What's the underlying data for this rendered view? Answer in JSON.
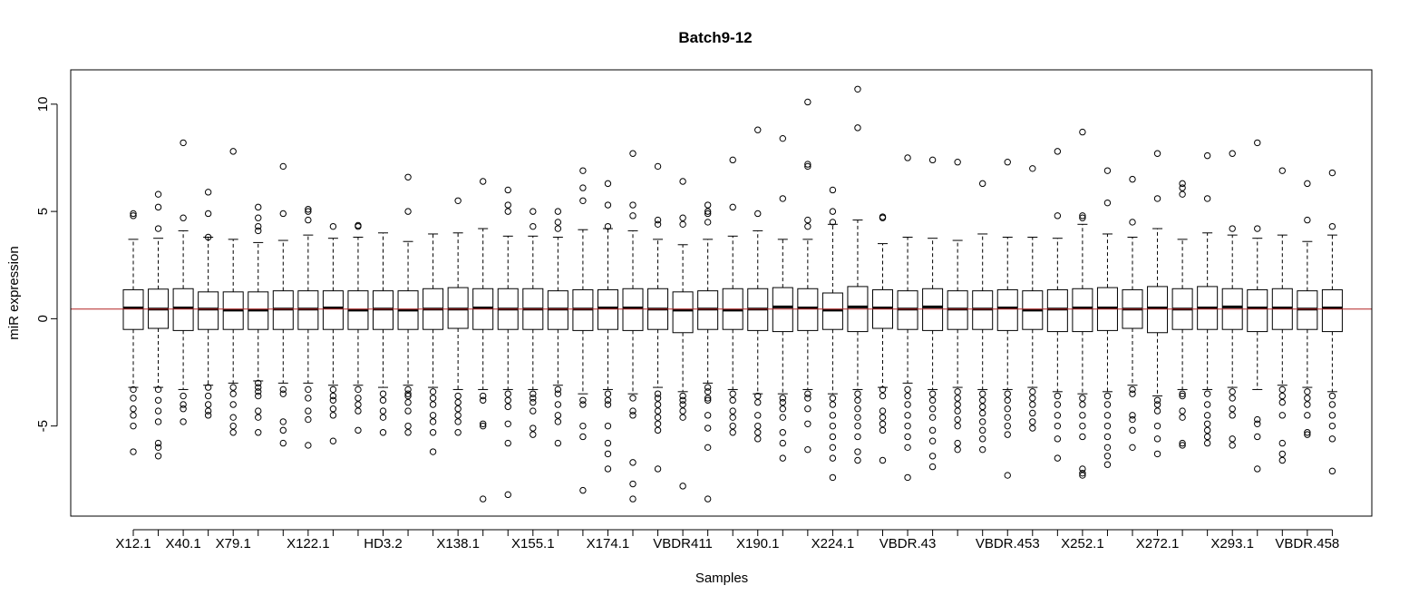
{
  "chart_data": {
    "type": "box",
    "title": "Batch9-12",
    "xlabel": "Samples",
    "ylabel": "miR expression",
    "ylim": [
      -9.2,
      11.6
    ],
    "yticks": [
      -5,
      0,
      5,
      10
    ],
    "reference_line": {
      "y": 0.45,
      "color": "#b22222"
    },
    "grid": false,
    "legend": "none",
    "shown_x_labels": [
      {
        "index": 1,
        "label": "X12.1"
      },
      {
        "index": 3,
        "label": "X40.1"
      },
      {
        "index": 5,
        "label": "X79.1"
      },
      {
        "index": 8,
        "label": "X122.1"
      },
      {
        "index": 11,
        "label": "HD3.2"
      },
      {
        "index": 14,
        "label": "X138.1"
      },
      {
        "index": 17,
        "label": "X155.1"
      },
      {
        "index": 20,
        "label": "X174.1"
      },
      {
        "index": 23,
        "label": "VBDR411"
      },
      {
        "index": 26,
        "label": "X190.1"
      },
      {
        "index": 29,
        "label": "X224.1"
      },
      {
        "index": 32,
        "label": "VBDR.43"
      },
      {
        "index": 36,
        "label": "VBDR.453"
      },
      {
        "index": 39,
        "label": "X252.1"
      },
      {
        "index": 42,
        "label": "X272.1"
      },
      {
        "index": 45,
        "label": "X293.1"
      },
      {
        "index": 48,
        "label": "VBDR.458"
      }
    ],
    "boxes": [
      {
        "q1": -0.5,
        "median": 0.5,
        "q3": 1.35,
        "lo": -3.2,
        "hi": 3.7,
        "out": [
          4.8,
          4.9,
          -3.3,
          -3.7,
          -4.2,
          -4.5,
          -5.0,
          -6.2
        ]
      },
      {
        "q1": -0.45,
        "median": 0.45,
        "q3": 1.38,
        "lo": -3.2,
        "hi": 3.75,
        "out": [
          4.2,
          5.2,
          5.8,
          -3.3,
          -3.8,
          -4.3,
          -4.8,
          -5.8,
          -6.0,
          -6.4
        ]
      },
      {
        "q1": -0.55,
        "median": 0.5,
        "q3": 1.4,
        "lo": -3.3,
        "hi": 4.1,
        "out": [
          4.7,
          8.2,
          -3.6,
          -4.0,
          -4.2,
          -4.8
        ]
      },
      {
        "q1": -0.5,
        "median": 0.45,
        "q3": 1.25,
        "lo": -3.1,
        "hi": 3.8,
        "out": [
          3.8,
          4.9,
          5.9,
          -3.2,
          -3.6,
          -4.0,
          -4.3,
          -4.5
        ]
      },
      {
        "q1": -0.5,
        "median": 0.4,
        "q3": 1.25,
        "lo": -3.0,
        "hi": 3.7,
        "out": [
          7.8,
          -3.2,
          -3.5,
          -4.0,
          -4.6,
          -5.0,
          -5.3
        ]
      },
      {
        "q1": -0.5,
        "median": 0.4,
        "q3": 1.25,
        "lo": -2.9,
        "hi": 3.55,
        "out": [
          4.1,
          4.3,
          4.7,
          5.2,
          -3.0,
          -3.2,
          -3.4,
          -3.6,
          -4.3,
          -4.6,
          -5.3
        ]
      },
      {
        "q1": -0.5,
        "median": 0.45,
        "q3": 1.3,
        "lo": -3.0,
        "hi": 3.65,
        "out": [
          4.9,
          7.1,
          -3.3,
          -3.5,
          -4.8,
          -5.2,
          -5.8
        ]
      },
      {
        "q1": -0.5,
        "median": 0.45,
        "q3": 1.3,
        "lo": -3.0,
        "hi": 3.9,
        "out": [
          4.6,
          5.0,
          5.1,
          -3.3,
          -3.7,
          -4.3,
          -4.7,
          -5.9
        ]
      },
      {
        "q1": -0.5,
        "median": 0.5,
        "q3": 1.3,
        "lo": -3.1,
        "hi": 3.75,
        "out": [
          4.3,
          -3.3,
          -3.6,
          -3.8,
          -4.2,
          -4.5,
          -5.7
        ]
      },
      {
        "q1": -0.5,
        "median": 0.4,
        "q3": 1.3,
        "lo": -3.1,
        "hi": 3.8,
        "out": [
          4.3,
          4.35,
          -3.3,
          -3.7,
          -4.0,
          -4.3,
          -5.2
        ]
      },
      {
        "q1": -0.5,
        "median": 0.45,
        "q3": 1.3,
        "lo": -3.2,
        "hi": 4.0,
        "out": [
          -3.5,
          -3.8,
          -4.3,
          -4.6,
          -5.3
        ]
      },
      {
        "q1": -0.5,
        "median": 0.4,
        "q3": 1.3,
        "lo": -3.1,
        "hi": 3.6,
        "out": [
          5.0,
          6.6,
          -3.3,
          -3.5,
          -3.6,
          -3.9,
          -4.3,
          -5.0,
          -5.3
        ]
      },
      {
        "q1": -0.5,
        "median": 0.45,
        "q3": 1.4,
        "lo": -3.2,
        "hi": 3.95,
        "out": [
          -3.4,
          -3.7,
          -4.0,
          -4.5,
          -4.8,
          -5.3,
          -6.2
        ]
      },
      {
        "q1": -0.45,
        "median": 0.45,
        "q3": 1.45,
        "lo": -3.3,
        "hi": 4.0,
        "out": [
          5.5,
          -3.6,
          -3.9,
          -4.2,
          -4.5,
          -4.8,
          -5.3
        ]
      },
      {
        "q1": -0.5,
        "median": 0.5,
        "q3": 1.4,
        "lo": -3.3,
        "hi": 4.2,
        "out": [
          6.4,
          -3.6,
          -3.8,
          -4.9,
          -5.0,
          -8.4
        ]
      },
      {
        "q1": -0.5,
        "median": 0.45,
        "q3": 1.4,
        "lo": -3.3,
        "hi": 3.85,
        "out": [
          5.0,
          5.3,
          6.0,
          -3.5,
          -3.8,
          -4.1,
          -4.9,
          -5.8,
          -8.2
        ]
      },
      {
        "q1": -0.5,
        "median": 0.45,
        "q3": 1.4,
        "lo": -3.3,
        "hi": 3.85,
        "out": [
          4.3,
          5.0,
          -3.5,
          -3.7,
          -3.9,
          -4.3,
          -5.1,
          -5.4
        ]
      },
      {
        "q1": -0.5,
        "median": 0.45,
        "q3": 1.3,
        "lo": -3.1,
        "hi": 3.8,
        "out": [
          4.2,
          4.5,
          5.0,
          -3.3,
          -3.5,
          -4.0,
          -4.5,
          -4.8,
          -5.8
        ]
      },
      {
        "q1": -0.55,
        "median": 0.45,
        "q3": 1.35,
        "lo": -3.5,
        "hi": 4.15,
        "out": [
          5.5,
          6.1,
          6.9,
          -3.8,
          -4.0,
          -5.0,
          -5.5,
          -8.0
        ]
      },
      {
        "q1": -0.5,
        "median": 0.5,
        "q3": 1.35,
        "lo": -3.3,
        "hi": 4.2,
        "out": [
          4.3,
          5.3,
          6.3,
          -3.5,
          -3.8,
          -4.0,
          -5.0,
          -5.8,
          -6.3,
          -7.0
        ]
      },
      {
        "q1": -0.55,
        "median": 0.5,
        "q3": 1.4,
        "lo": -3.5,
        "hi": 4.1,
        "out": [
          4.8,
          5.3,
          7.7,
          -3.7,
          -4.3,
          -4.5,
          -6.7,
          -7.7,
          -8.4
        ]
      },
      {
        "q1": -0.5,
        "median": 0.45,
        "q3": 1.4,
        "lo": -3.2,
        "hi": 3.7,
        "out": [
          4.4,
          4.6,
          7.1,
          -3.5,
          -3.7,
          -4.0,
          -4.3,
          -4.6,
          -4.9,
          -5.2,
          -7.0
        ]
      },
      {
        "q1": -0.65,
        "median": 0.4,
        "q3": 1.25,
        "lo": -3.4,
        "hi": 3.45,
        "out": [
          4.4,
          4.7,
          6.4,
          -3.6,
          -3.8,
          -4.0,
          -4.3,
          -4.6,
          -7.8
        ]
      },
      {
        "q1": -0.5,
        "median": 0.45,
        "q3": 1.3,
        "lo": -3.0,
        "hi": 3.7,
        "out": [
          4.5,
          4.9,
          5.0,
          5.3,
          -3.2,
          -3.4,
          -3.7,
          -3.8,
          -4.5,
          -5.1,
          -6.0,
          -8.4
        ]
      },
      {
        "q1": -0.5,
        "median": 0.4,
        "q3": 1.4,
        "lo": -3.3,
        "hi": 3.85,
        "out": [
          5.2,
          7.4,
          -3.5,
          -3.8,
          -4.3,
          -4.6,
          -5.0,
          -5.3
        ]
      },
      {
        "q1": -0.55,
        "median": 0.45,
        "q3": 1.4,
        "lo": -3.5,
        "hi": 4.1,
        "out": [
          4.9,
          8.8,
          -3.6,
          -3.9,
          -4.5,
          -5.0,
          -5.3,
          -5.6
        ]
      },
      {
        "q1": -0.6,
        "median": 0.55,
        "q3": 1.45,
        "lo": -3.5,
        "hi": 3.7,
        "out": [
          5.6,
          8.4,
          -3.7,
          -3.9,
          -4.2,
          -4.6,
          -5.3,
          -5.8,
          -6.5
        ]
      },
      {
        "q1": -0.55,
        "median": 0.5,
        "q3": 1.4,
        "lo": -3.3,
        "hi": 3.7,
        "out": [
          4.3,
          4.6,
          7.1,
          7.2,
          10.1,
          -3.5,
          -3.7,
          -4.2,
          -4.9,
          -6.1
        ]
      },
      {
        "q1": -0.5,
        "median": 0.4,
        "q3": 1.2,
        "lo": -3.5,
        "hi": 4.4,
        "out": [
          4.5,
          5.0,
          6.0,
          -3.7,
          -4.0,
          -4.5,
          -5.0,
          -5.5,
          -6.0,
          -6.5,
          -7.4
        ]
      },
      {
        "q1": -0.6,
        "median": 0.55,
        "q3": 1.5,
        "lo": -3.3,
        "hi": 4.6,
        "out": [
          10.7,
          8.9,
          -3.5,
          -3.8,
          -4.2,
          -4.6,
          -5.0,
          -5.5,
          -6.2,
          -6.6
        ]
      },
      {
        "q1": -0.45,
        "median": 0.5,
        "q3": 1.35,
        "lo": -3.2,
        "hi": 3.5,
        "out": [
          4.7,
          4.75,
          -3.3,
          -3.6,
          -4.3,
          -4.6,
          -4.9,
          -5.2,
          -6.6
        ]
      },
      {
        "q1": -0.5,
        "median": 0.45,
        "q3": 1.3,
        "lo": -3.0,
        "hi": 3.8,
        "out": [
          7.5,
          -3.3,
          -3.6,
          -4.0,
          -4.5,
          -5.0,
          -5.5,
          -6.0,
          -7.4
        ]
      },
      {
        "q1": -0.55,
        "median": 0.55,
        "q3": 1.4,
        "lo": -3.3,
        "hi": 3.75,
        "out": [
          7.4,
          -3.5,
          -3.8,
          -4.2,
          -4.6,
          -5.2,
          -5.7,
          -6.4,
          -6.9
        ]
      },
      {
        "q1": -0.5,
        "median": 0.45,
        "q3": 1.3,
        "lo": -3.2,
        "hi": 3.65,
        "out": [
          7.3,
          -3.4,
          -3.7,
          -4.0,
          -4.3,
          -4.7,
          -5.0,
          -5.8,
          -6.1
        ]
      },
      {
        "q1": -0.5,
        "median": 0.45,
        "q3": 1.3,
        "lo": -3.3,
        "hi": 3.95,
        "out": [
          6.3,
          -3.5,
          -3.8,
          -4.1,
          -4.4,
          -4.8,
          -5.2,
          -5.6,
          -6.1
        ]
      },
      {
        "q1": -0.55,
        "median": 0.5,
        "q3": 1.35,
        "lo": -3.3,
        "hi": 3.8,
        "out": [
          7.3,
          -3.5,
          -3.8,
          -4.2,
          -4.6,
          -5.0,
          -5.4,
          -7.3
        ]
      },
      {
        "q1": -0.5,
        "median": 0.4,
        "q3": 1.3,
        "lo": -3.2,
        "hi": 3.8,
        "out": [
          7.0,
          -3.4,
          -3.7,
          -4.0,
          -4.4,
          -4.8,
          -5.1
        ]
      },
      {
        "q1": -0.6,
        "median": 0.45,
        "q3": 1.35,
        "lo": -3.4,
        "hi": 3.75,
        "out": [
          4.8,
          7.8,
          -3.6,
          -4.0,
          -4.5,
          -5.0,
          -5.6,
          -6.5
        ]
      },
      {
        "q1": -0.6,
        "median": 0.5,
        "q3": 1.4,
        "lo": -3.5,
        "hi": 4.4,
        "out": [
          4.7,
          4.8,
          8.7,
          -3.7,
          -4.0,
          -4.5,
          -5.0,
          -5.5,
          -7.0,
          -7.2,
          -7.3
        ]
      },
      {
        "q1": -0.55,
        "median": 0.5,
        "q3": 1.45,
        "lo": -3.4,
        "hi": 3.95,
        "out": [
          5.4,
          6.9,
          -3.6,
          -4.0,
          -4.5,
          -5.0,
          -5.5,
          -6.0,
          -6.4,
          -6.8
        ]
      },
      {
        "q1": -0.45,
        "median": 0.45,
        "q3": 1.35,
        "lo": -3.1,
        "hi": 3.8,
        "out": [
          4.5,
          6.5,
          -3.3,
          -3.5,
          -4.5,
          -4.7,
          -5.2,
          -6.0
        ]
      },
      {
        "q1": -0.65,
        "median": 0.5,
        "q3": 1.5,
        "lo": -3.6,
        "hi": 4.2,
        "out": [
          5.6,
          7.7,
          -3.8,
          -4.0,
          -4.3,
          -5.0,
          -5.6,
          -6.3
        ]
      },
      {
        "q1": -0.5,
        "median": 0.45,
        "q3": 1.4,
        "lo": -3.3,
        "hi": 3.7,
        "out": [
          5.8,
          6.1,
          6.3,
          -3.5,
          -3.6,
          -4.3,
          -4.6,
          -5.8,
          -5.9
        ]
      },
      {
        "q1": -0.5,
        "median": 0.5,
        "q3": 1.5,
        "lo": -3.3,
        "hi": 4.0,
        "out": [
          5.6,
          7.6,
          -3.5,
          -4.0,
          -4.5,
          -4.9,
          -5.2,
          -5.5,
          -5.8
        ]
      },
      {
        "q1": -0.5,
        "median": 0.55,
        "q3": 1.4,
        "lo": -3.2,
        "hi": 3.9,
        "out": [
          4.2,
          7.7,
          -3.4,
          -3.7,
          -4.2,
          -4.5,
          -5.6,
          -5.9
        ]
      },
      {
        "q1": -0.6,
        "median": 0.5,
        "q3": 1.35,
        "lo": -3.3,
        "hi": 3.75,
        "out": [
          4.2,
          8.2,
          -4.7,
          -4.9,
          -5.5,
          -7.0
        ]
      },
      {
        "q1": -0.5,
        "median": 0.5,
        "q3": 1.4,
        "lo": -3.1,
        "hi": 3.9,
        "out": [
          6.9,
          -3.3,
          -3.6,
          -3.9,
          -4.5,
          -5.8,
          -6.3,
          -6.6
        ]
      },
      {
        "q1": -0.5,
        "median": 0.45,
        "q3": 1.3,
        "lo": -3.2,
        "hi": 3.6,
        "out": [
          4.6,
          6.3,
          -3.4,
          -3.7,
          -4.0,
          -4.5,
          -5.3,
          -5.4
        ]
      },
      {
        "q1": -0.6,
        "median": 0.5,
        "q3": 1.35,
        "lo": -3.4,
        "hi": 3.9,
        "out": [
          4.3,
          6.8,
          -3.6,
          -4.0,
          -4.5,
          -5.0,
          -5.6,
          -7.1
        ]
      }
    ]
  }
}
